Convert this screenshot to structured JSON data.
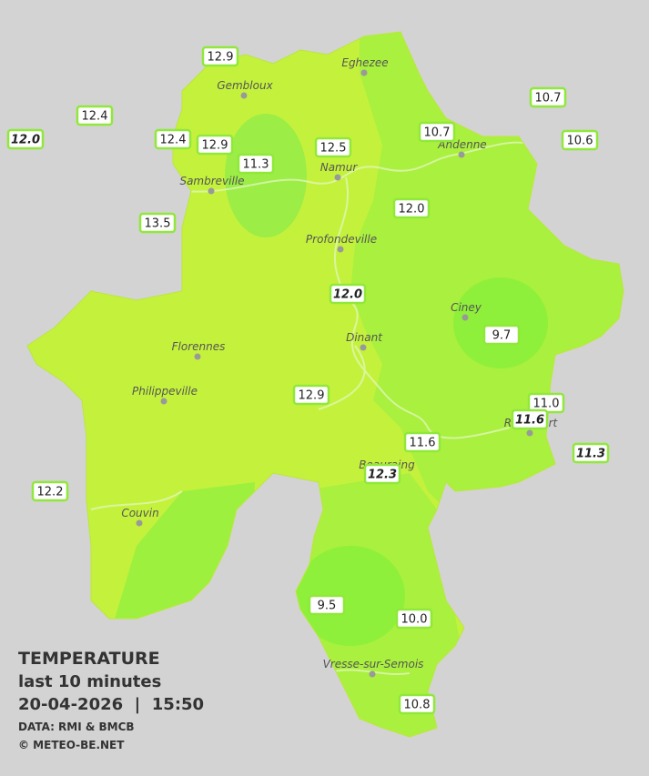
{
  "legend": {
    "title": "TEMPERATURE",
    "period": "last 10 minutes",
    "datetime": "20-04-2026  |  15:50",
    "source": "DATA: RMI & BMCB",
    "credit": "© METEO-BE.NET"
  },
  "cities": [
    "Eghezee",
    "Gembloux",
    "Andenne",
    "Namur",
    "Sambreville",
    "Profondeville",
    "Ciney",
    "Dinant",
    "Florennes",
    "Philippeville",
    "Couvin",
    "Vresse-sur-Semois",
    "Rochefort",
    "Beauraing"
  ],
  "stations": [
    {
      "text": "12.9",
      "italic": false
    },
    {
      "text": "12.4",
      "italic": false
    },
    {
      "text": "12.0",
      "italic": true
    },
    {
      "text": "12.4",
      "italic": false
    },
    {
      "text": "12.9",
      "italic": false
    },
    {
      "text": "11.3",
      "italic": false
    },
    {
      "text": "12.5",
      "italic": false
    },
    {
      "text": "10.7",
      "italic": false
    },
    {
      "text": "10.7",
      "italic": false
    },
    {
      "text": "10.6",
      "italic": false
    },
    {
      "text": "13.5",
      "italic": false
    },
    {
      "text": "12.0",
      "italic": false
    },
    {
      "text": "12.0",
      "italic": true
    },
    {
      "text": "9.7",
      "italic": false
    },
    {
      "text": "12.9",
      "italic": false
    },
    {
      "text": "11.0",
      "italic": false
    },
    {
      "text": "11.6",
      "italic": true
    },
    {
      "text": "11.3",
      "italic": true
    },
    {
      "text": "11.6",
      "italic": false
    },
    {
      "text": "12.3",
      "italic": true
    },
    {
      "text": "12.2",
      "italic": false
    },
    {
      "text": "9.5",
      "italic": false
    },
    {
      "text": "10.0",
      "italic": false
    },
    {
      "text": "10.8",
      "italic": false
    }
  ]
}
